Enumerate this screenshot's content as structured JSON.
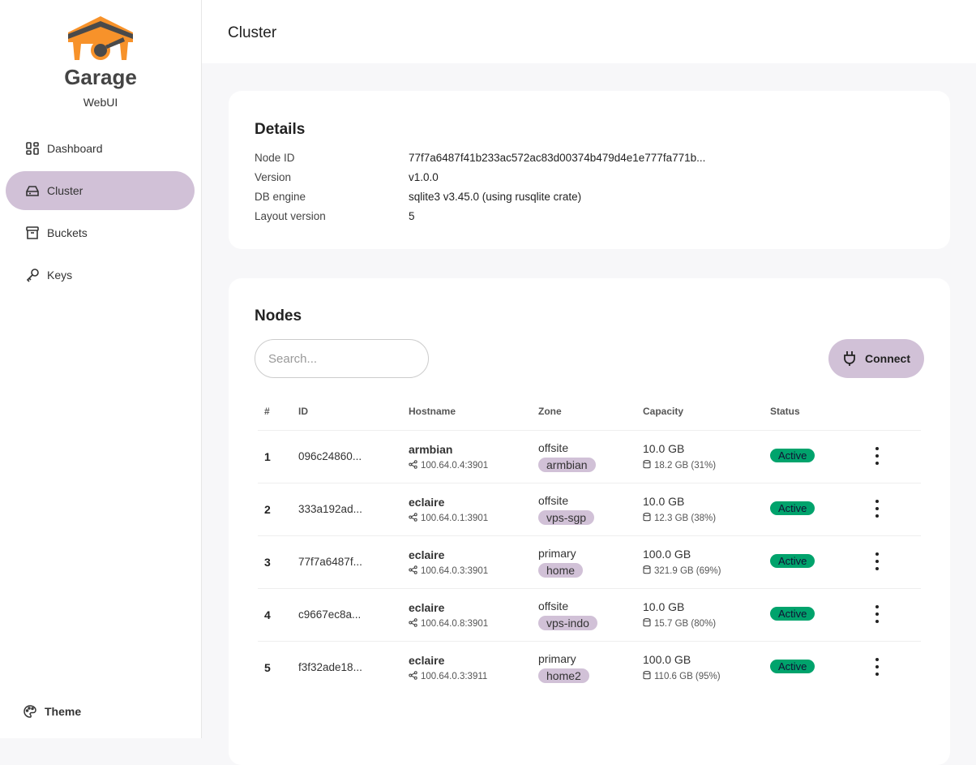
{
  "sidebar": {
    "brand": "Garage",
    "subtitle": "WebUI",
    "items": [
      {
        "label": "Dashboard",
        "icon": "dashboard-icon"
      },
      {
        "label": "Cluster",
        "icon": "server-icon",
        "active": true
      },
      {
        "label": "Buckets",
        "icon": "archive-icon"
      },
      {
        "label": "Keys",
        "icon": "key-icon"
      }
    ],
    "theme_label": "Theme"
  },
  "header": {
    "title": "Cluster"
  },
  "details": {
    "title": "Details",
    "rows": [
      {
        "label": "Node ID",
        "value": "77f7a6487f41b233ac572ac83d00374b479d4e1e777fa771b..."
      },
      {
        "label": "Version",
        "value": "v1.0.0"
      },
      {
        "label": "DB engine",
        "value": "sqlite3 v3.45.0 (using rusqlite crate)"
      },
      {
        "label": "Layout version",
        "value": "5"
      }
    ]
  },
  "nodes": {
    "title": "Nodes",
    "search_placeholder": "Search...",
    "connect_label": "Connect",
    "columns": [
      "#",
      "ID",
      "Hostname",
      "Zone",
      "Capacity",
      "Status"
    ],
    "rows": [
      {
        "num": "1",
        "id": "096c24860...",
        "hostname": "armbian",
        "address": "100.64.0.4:3901",
        "zone": "offsite",
        "tag": "armbian",
        "capacity": "10.0 GB",
        "used": "18.2 GB (31%)",
        "status": "Active"
      },
      {
        "num": "2",
        "id": "333a192ad...",
        "hostname": "eclaire",
        "address": "100.64.0.1:3901",
        "zone": "offsite",
        "tag": "vps-sgp",
        "capacity": "10.0 GB",
        "used": "12.3 GB (38%)",
        "status": "Active"
      },
      {
        "num": "3",
        "id": "77f7a6487f...",
        "hostname": "eclaire",
        "address": "100.64.0.3:3901",
        "zone": "primary",
        "tag": "home",
        "capacity": "100.0 GB",
        "used": "321.9 GB (69%)",
        "status": "Active"
      },
      {
        "num": "4",
        "id": "c9667ec8a...",
        "hostname": "eclaire",
        "address": "100.64.0.8:3901",
        "zone": "offsite",
        "tag": "vps-indo",
        "capacity": "10.0 GB",
        "used": "15.7 GB (80%)",
        "status": "Active"
      },
      {
        "num": "5",
        "id": "f3f32ade18...",
        "hostname": "eclaire",
        "address": "100.64.0.3:3911",
        "zone": "primary",
        "tag": "home2",
        "capacity": "100.0 GB",
        "used": "110.6 GB (95%)",
        "status": "Active"
      }
    ]
  },
  "colors": {
    "accent": "#d1c1d7",
    "active": "#00a36c",
    "logo_orange": "#f7922a",
    "logo_dark": "#4a4a4a"
  }
}
